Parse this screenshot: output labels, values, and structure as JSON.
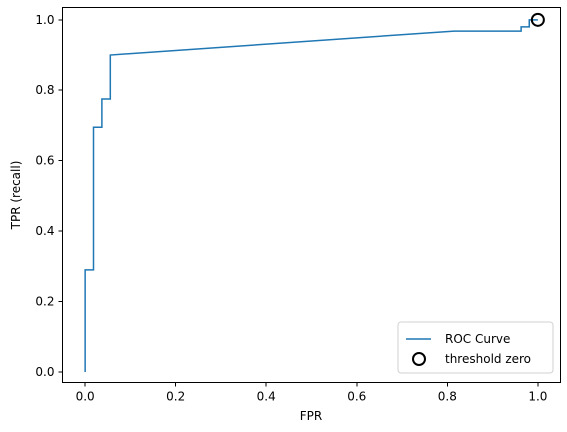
{
  "chart_data": {
    "type": "line",
    "title": "",
    "xlabel": "FPR",
    "ylabel": "TPR (recall)",
    "xlim": [
      -0.05,
      1.05
    ],
    "ylim": [
      -0.03,
      1.035
    ],
    "x_ticks": [
      0.0,
      0.2,
      0.4,
      0.6,
      0.8,
      1.0
    ],
    "x_tick_labels": [
      "0.0",
      "0.2",
      "0.4",
      "0.6",
      "0.8",
      "1.0"
    ],
    "y_ticks": [
      0.0,
      0.2,
      0.4,
      0.6,
      0.8,
      1.0
    ],
    "y_tick_labels": [
      "0.0",
      "0.2",
      "0.4",
      "0.6",
      "0.8",
      "1.0"
    ],
    "grid": false,
    "legend_position": "bottom-right",
    "series": [
      {
        "name": "ROC Curve",
        "style": "line",
        "color": "#1f77b4",
        "x": [
          0.0,
          0.0,
          0.0185,
          0.0185,
          0.037,
          0.037,
          0.0556,
          0.0556,
          0.815,
          0.963,
          0.963,
          0.981,
          0.981,
          1.0
        ],
        "y": [
          0.0,
          0.29,
          0.29,
          0.695,
          0.695,
          0.775,
          0.775,
          0.9,
          0.968,
          0.968,
          0.98,
          0.98,
          1.0,
          1.0
        ]
      },
      {
        "name": "threshold zero",
        "style": "marker",
        "marker": "open-circle",
        "color": "#000000",
        "x": [
          1.0
        ],
        "y": [
          1.0
        ]
      }
    ]
  }
}
